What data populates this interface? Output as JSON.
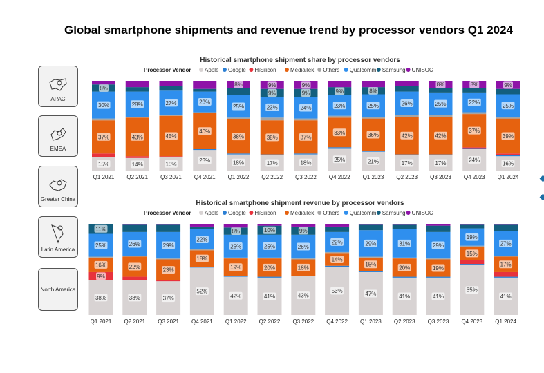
{
  "title": "Global smartphone shipments and revenue trend by processor vendors Q1 2024",
  "regions": [
    "APAC",
    "EMEA",
    "Greater China",
    "Latin America",
    "North America"
  ],
  "chart_data": [
    {
      "type": "bar",
      "stacked": true,
      "title": "Historical smartphone shipment share by processor vendors",
      "legend_title": "Processor Vendor",
      "legend_position": "top",
      "categories": [
        "Q1 2021",
        "Q2 2021",
        "Q3 2021",
        "Q4 2021",
        "Q1 2022",
        "Q2 2022",
        "Q3 2022",
        "Q4 2022",
        "Q1 2023",
        "Q2 2023",
        "Q3 2023",
        "Q4 2023",
        "Q1 2024"
      ],
      "ylim": [
        0,
        100
      ],
      "unit": "%",
      "series": [
        {
          "name": "Apple",
          "color": "#d8d3d3",
          "values": [
            15,
            14,
            15,
            23,
            18,
            17,
            18,
            25,
            21,
            17,
            17,
            24,
            16
          ],
          "labeled": [
            0,
            1,
            2,
            3,
            4,
            5,
            6,
            7,
            8,
            9,
            10,
            11,
            12
          ]
        },
        {
          "name": "Google",
          "color": "#2b7fd4",
          "values": [
            0,
            0,
            0,
            1,
            1,
            1,
            1,
            1,
            1,
            1,
            1,
            1,
            1
          ],
          "labeled": []
        },
        {
          "name": "HiSilicon",
          "color": "#e8323c",
          "values": [
            4,
            2,
            1,
            0,
            0,
            0,
            0,
            0,
            0,
            0,
            0,
            1,
            2
          ],
          "labeled": []
        },
        {
          "name": "MediaTek",
          "color": "#e6620f",
          "values": [
            37,
            43,
            45,
            40,
            38,
            38,
            37,
            33,
            36,
            42,
            42,
            37,
            39
          ],
          "labeled": [
            0,
            1,
            2,
            3,
            4,
            5,
            6,
            7,
            8,
            9,
            10,
            11,
            12
          ]
        },
        {
          "name": "Others",
          "color": "#a5a5a5",
          "values": [
            2,
            1,
            1,
            1,
            2,
            3,
            2,
            2,
            2,
            2,
            2,
            2,
            2
          ],
          "labeled": []
        },
        {
          "name": "Qualcomm",
          "color": "#2f8fee",
          "values": [
            30,
            28,
            27,
            23,
            25,
            23,
            24,
            23,
            25,
            26,
            25,
            22,
            25
          ],
          "labeled": [
            0,
            1,
            2,
            3,
            4,
            5,
            6,
            7,
            8,
            9,
            10,
            11,
            12
          ]
        },
        {
          "name": "Samsung",
          "color": "#135f7e",
          "values": [
            8,
            5,
            5,
            3,
            8,
            9,
            9,
            9,
            8,
            6,
            5,
            5,
            6
          ],
          "labeled": [
            0,
            5,
            6,
            7,
            8
          ]
        },
        {
          "name": "UNISOC",
          "color": "#8e12a8",
          "values": [
            4,
            7,
            6,
            9,
            8,
            9,
            9,
            7,
            7,
            6,
            8,
            8,
            9
          ],
          "labeled": [
            4,
            5,
            6,
            10,
            11,
            12
          ]
        }
      ]
    },
    {
      "type": "bar",
      "stacked": true,
      "title": "Historical smartphone shipment revenue by processor vendors",
      "legend_title": "Processor Vendor",
      "legend_position": "top",
      "categories": [
        "Q1 2021",
        "Q2 2021",
        "Q3 2021",
        "Q4 2021",
        "Q1 2022",
        "Q2 2022",
        "Q3 2022",
        "Q4 2022",
        "Q1 2023",
        "Q2 2023",
        "Q3 2023",
        "Q4 2023",
        "Q1 2024"
      ],
      "ylim": [
        0,
        100
      ],
      "unit": "%",
      "series": [
        {
          "name": "Apple",
          "color": "#d8d3d3",
          "values": [
            38,
            38,
            37,
            52,
            42,
            41,
            43,
            53,
            47,
            41,
            41,
            55,
            41
          ],
          "labeled": [
            0,
            1,
            2,
            3,
            4,
            5,
            6,
            7,
            8,
            9,
            10,
            11,
            12
          ]
        },
        {
          "name": "Google",
          "color": "#2b7fd4",
          "values": [
            0,
            0,
            0,
            1,
            1,
            1,
            0,
            1,
            1,
            1,
            1,
            1,
            1
          ],
          "labeled": []
        },
        {
          "name": "HiSilicon",
          "color": "#e8323c",
          "values": [
            9,
            4,
            1,
            0,
            0,
            0,
            0,
            0,
            0,
            0,
            0,
            4,
            5
          ],
          "labeled": [
            0
          ]
        },
        {
          "name": "MediaTek",
          "color": "#e6620f",
          "values": [
            16,
            22,
            23,
            18,
            19,
            20,
            18,
            14,
            15,
            20,
            19,
            15,
            17
          ],
          "labeled": [
            0,
            1,
            2,
            3,
            4,
            5,
            6,
            7,
            8,
            9,
            10,
            11,
            12
          ]
        },
        {
          "name": "Others",
          "color": "#a5a5a5",
          "values": [
            1,
            1,
            1,
            1,
            1,
            1,
            1,
            1,
            1,
            1,
            1,
            1,
            1
          ],
          "labeled": []
        },
        {
          "name": "Qualcomm",
          "color": "#2f8fee",
          "values": [
            25,
            26,
            29,
            22,
            25,
            25,
            26,
            22,
            29,
            31,
            29,
            19,
            27
          ],
          "labeled": [
            0,
            1,
            2,
            3,
            4,
            5,
            6,
            7,
            8,
            9,
            10,
            11,
            12
          ]
        },
        {
          "name": "Samsung",
          "color": "#135f7e",
          "values": [
            11,
            8,
            8,
            3,
            8,
            10,
            9,
            6,
            6,
            5,
            7,
            4,
            7
          ],
          "labeled": [
            0,
            4,
            5,
            6
          ]
        },
        {
          "name": "UNISOC",
          "color": "#8e12a8",
          "values": [
            0,
            1,
            1,
            3,
            4,
            2,
            3,
            3,
            1,
            1,
            2,
            1,
            1
          ],
          "labeled": []
        }
      ]
    }
  ]
}
